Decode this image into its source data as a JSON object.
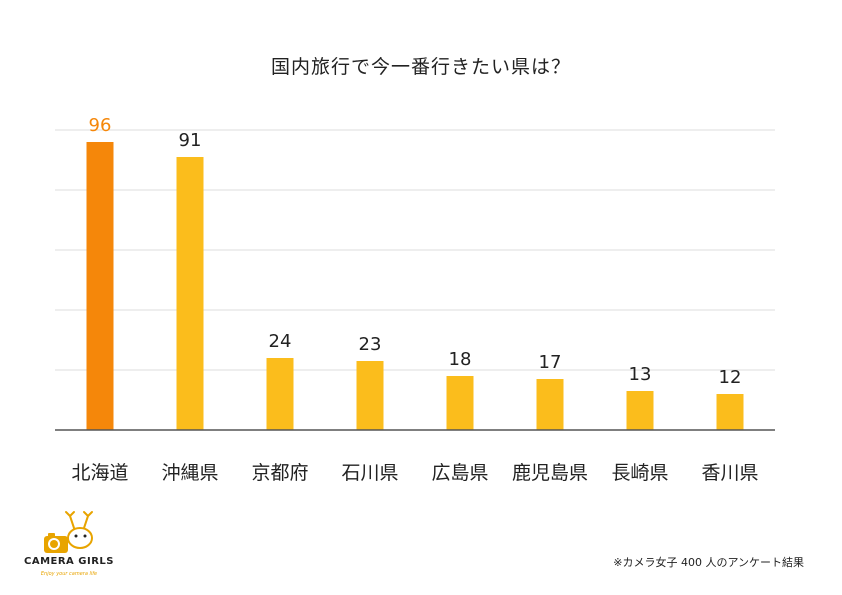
{
  "chart_data": {
    "type": "bar",
    "title": "国内旅行で今一番行きたい県は？",
    "categories": [
      "北海道",
      "沖縄県",
      "京都府",
      "石川県",
      "広島県",
      "鹿児島県",
      "長崎県",
      "香川県"
    ],
    "values": [
      96,
      91,
      24,
      23,
      18,
      17,
      13,
      12
    ],
    "ylim": [
      0,
      100
    ],
    "grid": true,
    "highlight_index": 0,
    "colors": {
      "bar": "#fbbd1c",
      "highlight": "#f5870a",
      "highlight_label": "#f5870a",
      "grid": "#dddddd",
      "axis": "#555555"
    }
  },
  "brand": {
    "name": "CAMERA GIRLS",
    "tagline": "Enjoy your camera life",
    "logo_icon": "camera-deer-icon"
  },
  "footnote": "※カメラ女子 400 人のアンケート結果"
}
